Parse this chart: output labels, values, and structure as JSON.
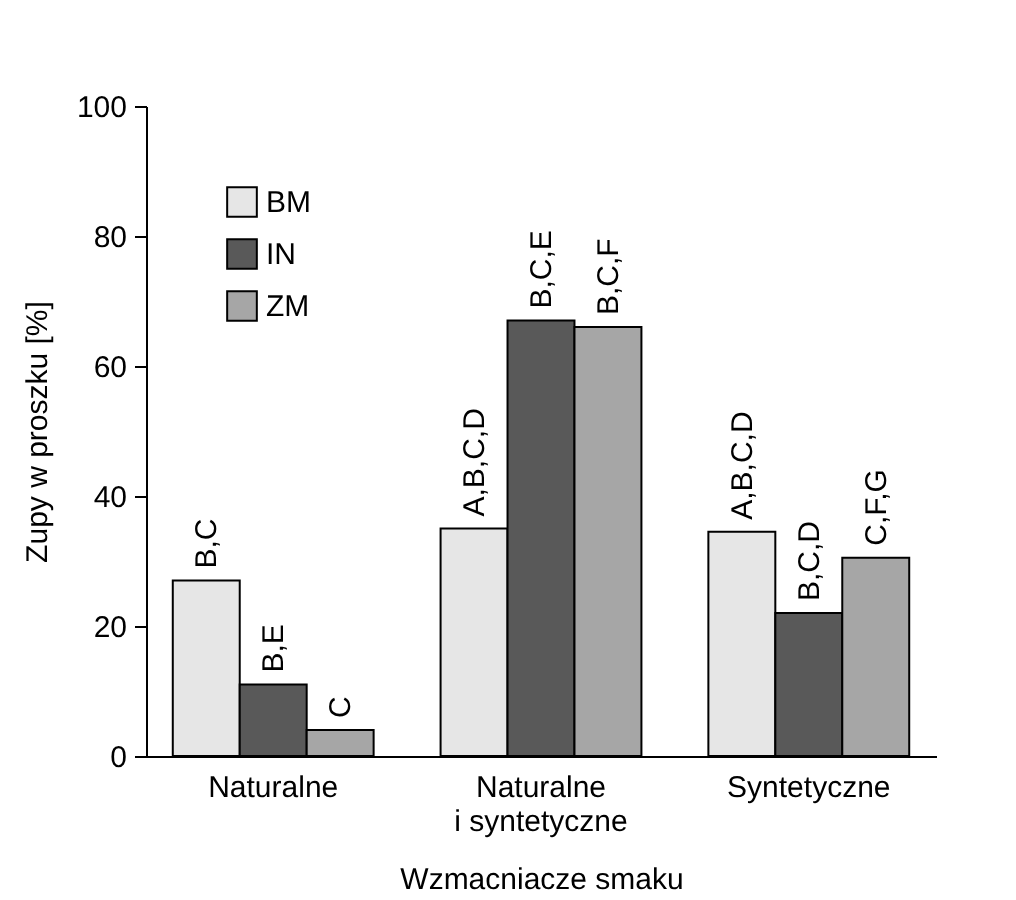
{
  "chart_data": {
    "type": "bar",
    "xlabel": "Wzmacniacze smaku",
    "ylabel": "Zupy w proszku [%]",
    "categories": [
      "Naturalne",
      "Naturalne\ni syntetyczne",
      "Syntetyczne"
    ],
    "series": [
      {
        "name": "BM",
        "color": "#e6e6e6",
        "values": [
          27,
          35,
          34.5
        ],
        "value_labels": [
          "B,C",
          "A,B,C,D",
          "A,B,C,D"
        ]
      },
      {
        "name": "IN",
        "color": "#595959",
        "values": [
          11,
          67,
          22
        ],
        "value_labels": [
          "B,E",
          "B,C,E",
          "B,C,D"
        ]
      },
      {
        "name": "ZM",
        "color": "#a6a6a6",
        "values": [
          4,
          66,
          30.5
        ],
        "value_labels": [
          "C",
          "B,C,F",
          "C,F,G"
        ]
      }
    ],
    "ylim": [
      0,
      100
    ],
    "yticks": [
      0,
      20,
      40,
      60,
      80,
      100
    ],
    "grid": false,
    "legend": "top left"
  }
}
